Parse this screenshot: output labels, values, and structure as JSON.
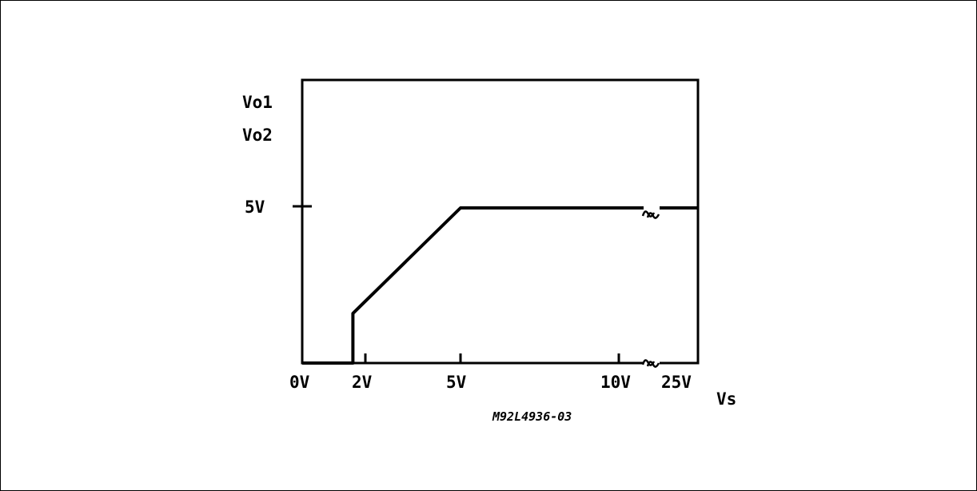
{
  "chart_data": {
    "type": "line",
    "y_labels": [
      "Vo1",
      "Vo2"
    ],
    "xlabel": "Vs",
    "y_tick_labels": [
      "5V"
    ],
    "x_tick_labels": [
      "0V",
      "2V",
      "5V",
      "10V",
      "25V"
    ],
    "figure_code": "M92L4936-03",
    "x_axis_break": "between 10V and 25V",
    "series": [
      {
        "points": [
          {
            "x": 0,
            "y": 0
          },
          {
            "x": 1.6,
            "y": 0
          },
          {
            "x": 1.6,
            "y": 1.6
          },
          {
            "x": 5,
            "y": 5
          },
          {
            "x": 10,
            "y": 5
          },
          {
            "x": 25,
            "y": 5
          }
        ]
      }
    ],
    "colors": {
      "line": "#000000",
      "frame": "#000000"
    }
  }
}
